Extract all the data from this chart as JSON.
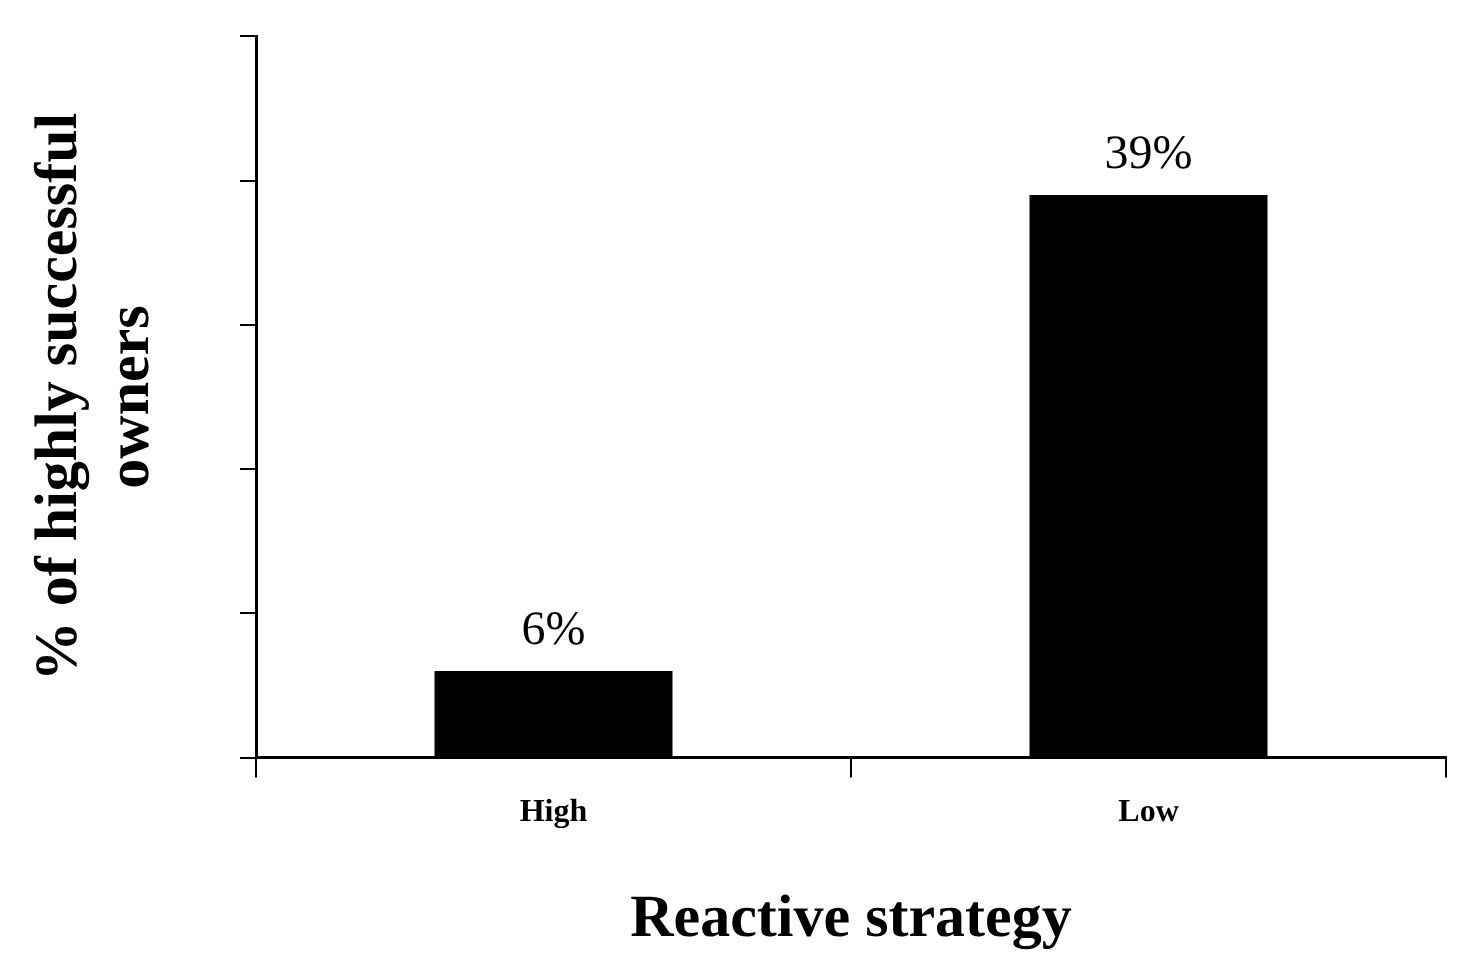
{
  "chart_data": {
    "type": "bar",
    "xlabel": "Reactive strategy",
    "ylabel": "% of highly successful owners",
    "categories": [
      "High",
      "Low"
    ],
    "values": [
      6,
      39
    ],
    "value_labels": [
      "6%",
      "39%"
    ],
    "color": "#000000",
    "ylim": [
      0,
      50
    ],
    "yticks": [
      {
        "value": 0,
        "label": null
      },
      {
        "value": 10,
        "label": null
      },
      {
        "value": 20,
        "label": null
      },
      {
        "value": 30,
        "label": null
      },
      {
        "value": 40,
        "label": null
      },
      {
        "value": 50,
        "label": null
      }
    ],
    "tick_labels": "x",
    "grid": false,
    "legend": false
  }
}
